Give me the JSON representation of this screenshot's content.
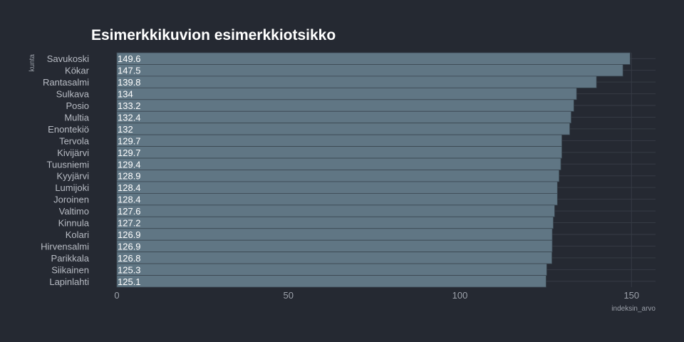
{
  "chart_data": {
    "type": "bar",
    "orientation": "horizontal",
    "title": "Esimerkkikuvion esimerkkiotsikko",
    "xlabel": "indeksin_arvo",
    "ylabel": "kunta",
    "categories": [
      "Savukoski",
      "Kökar",
      "Rantasalmi",
      "Sulkava",
      "Posio",
      "Multia",
      "Enontekiö",
      "Tervola",
      "Kivijärvi",
      "Tuusniemi",
      "Kyyjärvi",
      "Lumijoki",
      "Joroinen",
      "Valtimo",
      "Kinnula",
      "Kolari",
      "Hirvensalmi",
      "Parikkala",
      "Siikainen",
      "Lapinlahti"
    ],
    "values": [
      149.6,
      147.5,
      139.8,
      134,
      133.2,
      132.4,
      132,
      129.7,
      129.7,
      129.4,
      128.9,
      128.4,
      128.4,
      127.6,
      127.2,
      126.9,
      126.9,
      126.8,
      125.3,
      125.1
    ],
    "value_labels": [
      "149.6",
      "147.5",
      "139.8",
      "134",
      "133.2",
      "132.4",
      "132",
      "129.7",
      "129.7",
      "129.4",
      "128.9",
      "128.4",
      "128.4",
      "127.6",
      "127.2",
      "126.9",
      "126.9",
      "126.8",
      "125.3",
      "125.1"
    ],
    "xticks": [
      0,
      50,
      100,
      150
    ],
    "xtick_labels": [
      "0",
      "50",
      "100",
      "150"
    ],
    "xlim": [
      0,
      157
    ],
    "grid": true,
    "legend": "none",
    "colors": {
      "background": "#252932",
      "bar": "#607684",
      "bar_edge": "#3a4650",
      "grid": "#363b45",
      "title": "#ffffff",
      "label": "#b8bcc4",
      "value_text": "#ffffff"
    }
  }
}
